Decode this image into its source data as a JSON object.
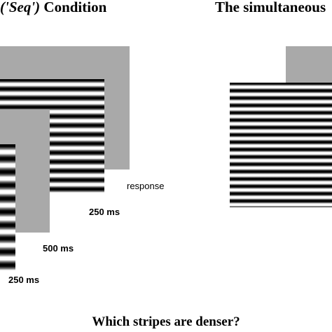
{
  "titles": {
    "left_italic": "('Seq')",
    "left_rest": " Condition",
    "right": "The simultaneous"
  },
  "labels": {
    "response": "response",
    "t1": "250 ms",
    "t2": "500 ms",
    "t3": "250 ms"
  },
  "question": "Which stripes are denser?",
  "colors": {
    "gray_frame": "#a9a9a9",
    "stripe_dark": "#000000",
    "stripe_light": "#ffffff"
  }
}
